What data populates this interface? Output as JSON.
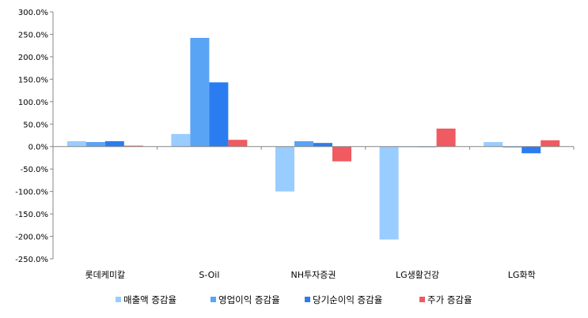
{
  "chart_data": {
    "type": "bar",
    "title": "",
    "xlabel": "",
    "ylabel": "",
    "categories": [
      "롯데케미칼",
      "S-Oil",
      "NH투자증권",
      "LG생활건강",
      "LG화학"
    ],
    "series": [
      {
        "name": "매출액 증감율",
        "color": "#99ccff",
        "values": [
          12,
          28,
          -100,
          -207,
          10
        ]
      },
      {
        "name": "영업이익 증감율",
        "color": "#5aa4f6",
        "values": [
          10,
          242,
          12,
          0,
          -2
        ]
      },
      {
        "name": "당기순이익 증감율",
        "color": "#2a7cf0",
        "values": [
          12,
          143,
          8,
          0,
          -15
        ]
      },
      {
        "name": "주가 증감율",
        "color": "#f05a61",
        "values": [
          2,
          15,
          -33,
          40,
          14
        ]
      }
    ],
    "ylim": [
      -250,
      300
    ],
    "ytick_step": 50,
    "ytick_labels": [
      "300.0%",
      "250.0%",
      "200.0%",
      "150.0%",
      "100.0%",
      "50.0%",
      "0.0%",
      "-50.0%",
      "-100.0%",
      "-150.0%",
      "-200.0%",
      "-250.0%"
    ],
    "grid": false,
    "legend_position": "bottom"
  }
}
